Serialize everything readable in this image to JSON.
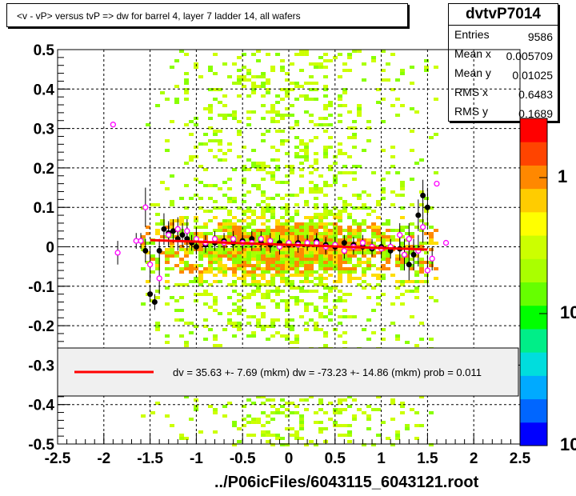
{
  "title": "<v - vP>       versus  tvP =>  dw for barrel 4, layer 7 ladder 14, all wafers",
  "stats": {
    "name": "dvtvP7014",
    "rows": [
      {
        "key": "Entries",
        "value": "9586"
      },
      {
        "key": "Mean x",
        "value": "0.005709"
      },
      {
        "key": "Mean y",
        "value": "0.01025"
      },
      {
        "key": "RMS x",
        "value": "0.6483"
      },
      {
        "key": "RMS y",
        "value": "0.1689"
      }
    ]
  },
  "legend": {
    "text": "dv =   35.63 +-  7.69 (mkm) dw =  -73.23 +- 14.86 (mkm) prob = 0.011",
    "line_color": "#ff0000"
  },
  "palette": {
    "labels": [
      "1",
      "10",
      "10"
    ],
    "colors": [
      "#0000ff",
      "#0066ff",
      "#00aaff",
      "#00dddd",
      "#00ee88",
      "#00ff00",
      "#66ff00",
      "#aaff00",
      "#ccff00",
      "#ffff00",
      "#ffcc00",
      "#ff8800",
      "#ff4400",
      "#ff0000"
    ]
  },
  "chart_data": {
    "type": "scatter",
    "title": "<v - vP>       versus  tvP =>  dw for barrel 4, layer 7 ladder 14, all wafers",
    "xlabel": "../P06icFiles/6043115_6043121.root",
    "ylabel": "",
    "xlim": [
      -2.5,
      2.5
    ],
    "ylim": [
      -0.5,
      0.5
    ],
    "x_ticks": [
      "-2.5",
      "-2",
      "-1.5",
      "-1",
      "-0.5",
      "0",
      "0.5",
      "1",
      "1.5",
      "2",
      "2.5"
    ],
    "y_ticks": [
      "-0.5",
      "-0.4",
      "-0.3",
      "-0.2",
      "-0.1",
      "0",
      "0.1",
      "0.2",
      "0.3",
      "0.4",
      "0.5"
    ],
    "grid": true,
    "heatmap_region": {
      "x": [
        -1.6,
        1.6
      ],
      "y": [
        -0.5,
        0.5
      ]
    },
    "fit_line": {
      "x": [
        -1.5,
        1.5
      ],
      "y": [
        0.017,
        -0.007
      ],
      "color": "#ff0000"
    },
    "series": [
      {
        "marker": "filled-circle",
        "color": "#000000",
        "points": [
          [
            -1.55,
            -0.01,
            0.03
          ],
          [
            -1.5,
            -0.12,
            0.02
          ],
          [
            -1.45,
            -0.14,
            0.02
          ],
          [
            -1.4,
            -0.01,
            0.03
          ],
          [
            -1.35,
            0.045,
            0.04
          ],
          [
            -1.3,
            0.035,
            0.03
          ],
          [
            -1.25,
            0.04,
            0.03
          ],
          [
            -1.2,
            0.02,
            0.03
          ],
          [
            -1.15,
            0.03,
            0.03
          ],
          [
            -1.1,
            0.02,
            0.03
          ],
          [
            -1.05,
            0.01,
            0.02
          ],
          [
            -1.0,
            0.0,
            0.02
          ],
          [
            -0.9,
            0.005,
            0.02
          ],
          [
            -0.8,
            0.01,
            0.02
          ],
          [
            -0.7,
            0.015,
            0.02
          ],
          [
            -0.6,
            0.01,
            0.02
          ],
          [
            -0.5,
            0.015,
            0.02
          ],
          [
            -0.4,
            0.02,
            0.02
          ],
          [
            -0.3,
            0.01,
            0.02
          ],
          [
            -0.2,
            0.005,
            0.02
          ],
          [
            -0.1,
            0.01,
            0.02
          ],
          [
            0.0,
            0.005,
            0.02
          ],
          [
            0.1,
            0.01,
            0.02
          ],
          [
            0.2,
            0.01,
            0.02
          ],
          [
            0.3,
            0.015,
            0.02
          ],
          [
            0.4,
            0.005,
            0.02
          ],
          [
            0.5,
            0.0,
            0.02
          ],
          [
            0.6,
            0.01,
            0.02
          ],
          [
            0.7,
            0.005,
            0.02
          ],
          [
            0.8,
            0.0,
            0.02
          ],
          [
            0.9,
            -0.005,
            0.02
          ],
          [
            1.0,
            0.0,
            0.02
          ],
          [
            1.1,
            -0.01,
            0.02
          ],
          [
            1.2,
            -0.005,
            0.03
          ],
          [
            1.3,
            -0.045,
            0.04
          ],
          [
            1.35,
            -0.02,
            0.04
          ],
          [
            1.4,
            0.08,
            0.04
          ],
          [
            1.45,
            0.13,
            0.04
          ],
          [
            1.5,
            0.1,
            0.05
          ]
        ]
      },
      {
        "marker": "open-circle",
        "color": "#ff00ff",
        "points": [
          [
            -1.9,
            0.31,
            0.0
          ],
          [
            -1.85,
            -0.015,
            0.03
          ],
          [
            -1.65,
            0.015,
            0.02
          ],
          [
            -1.6,
            0.015,
            0.02
          ],
          [
            -1.55,
            0.1,
            0.05
          ],
          [
            -1.5,
            -0.045,
            0.04
          ],
          [
            -1.4,
            -0.08,
            0.04
          ],
          [
            -1.3,
            0.03,
            0.03
          ],
          [
            -1.2,
            0.045,
            0.03
          ],
          [
            -1.1,
            0.04,
            0.03
          ],
          [
            -1.0,
            0.02,
            0.03
          ],
          [
            -0.9,
            0.01,
            0.02
          ],
          [
            -0.8,
            0.02,
            0.02
          ],
          [
            -0.7,
            0.01,
            0.02
          ],
          [
            -0.6,
            0.02,
            0.02
          ],
          [
            -0.5,
            0.01,
            0.02
          ],
          [
            -0.4,
            0.01,
            0.02
          ],
          [
            -0.3,
            0.02,
            0.02
          ],
          [
            -0.2,
            0.015,
            0.02
          ],
          [
            -0.1,
            0.0,
            0.02
          ],
          [
            0.0,
            0.01,
            0.02
          ],
          [
            0.1,
            0.005,
            0.02
          ],
          [
            0.2,
            0.01,
            0.02
          ],
          [
            0.3,
            0.01,
            0.02
          ],
          [
            0.4,
            0.0,
            0.02
          ],
          [
            0.5,
            0.005,
            0.02
          ],
          [
            0.6,
            -0.01,
            0.02
          ],
          [
            0.7,
            0.0,
            0.02
          ],
          [
            0.8,
            0.01,
            0.02
          ],
          [
            0.9,
            0.0,
            0.02
          ],
          [
            1.0,
            -0.005,
            0.02
          ],
          [
            1.1,
            0.0,
            0.02
          ],
          [
            1.2,
            0.03,
            0.03
          ],
          [
            1.25,
            -0.02,
            0.04
          ],
          [
            1.3,
            0.02,
            0.04
          ],
          [
            1.4,
            -0.01,
            0.04
          ],
          [
            1.45,
            0.05,
            0.04
          ],
          [
            1.5,
            -0.06,
            0.04
          ],
          [
            1.55,
            -0.03,
            0.03
          ],
          [
            1.6,
            0.16,
            0.0
          ],
          [
            1.7,
            0.01,
            0.0
          ]
        ]
      }
    ]
  }
}
